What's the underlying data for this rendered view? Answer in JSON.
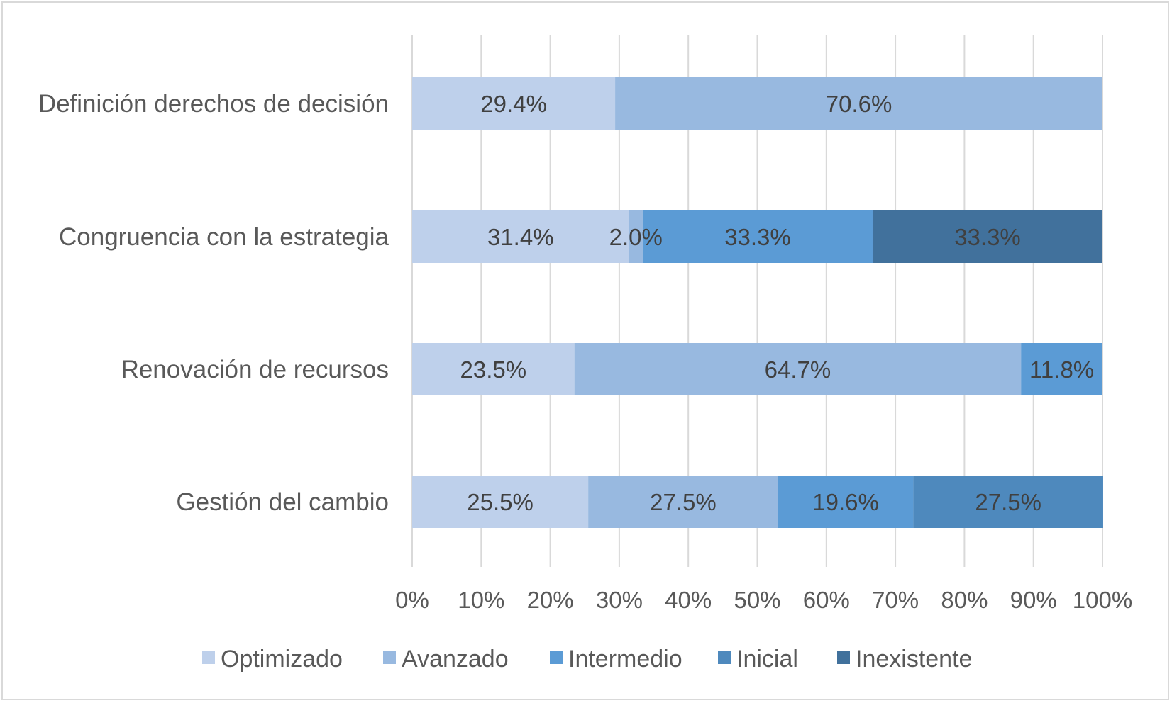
{
  "chart_data": {
    "type": "bar",
    "orientation": "horizontal",
    "stacked": "percent",
    "categories": [
      "Definición derechos de decisión",
      "Congruencia con la estrategia",
      "Renovación de recursos",
      "Gestión del cambio"
    ],
    "series": [
      {
        "name": "Optimizado",
        "color": "#bed0eb",
        "values": [
          29.4,
          31.4,
          23.5,
          25.5
        ],
        "labels": [
          "29.4%",
          "31.4%",
          "23.5%",
          "25.5%"
        ]
      },
      {
        "name": "Avanzado",
        "color": "#98b9e0",
        "values": [
          70.6,
          2.0,
          64.7,
          27.5
        ],
        "labels": [
          "70.6%",
          "2.0%",
          "64.7%",
          "27.5%"
        ]
      },
      {
        "name": "Intermedio",
        "color": "#5b9bd5",
        "values": [
          0,
          33.3,
          11.8,
          19.6
        ],
        "labels": [
          "",
          "33.3%",
          "11.8%",
          "19.6%"
        ]
      },
      {
        "name": "Inicial",
        "color": "#4e89bd",
        "values": [
          0,
          0,
          0,
          27.5
        ],
        "labels": [
          "",
          "",
          "",
          "27.5%"
        ]
      },
      {
        "name": "Inexistente",
        "color": "#41719c",
        "values": [
          0,
          33.3,
          0,
          0
        ],
        "labels": [
          "",
          "33.3%",
          "",
          ""
        ]
      }
    ],
    "xlim": [
      0,
      100
    ],
    "xticks": [
      "0%",
      "10%",
      "20%",
      "30%",
      "40%",
      "50%",
      "60%",
      "70%",
      "80%",
      "90%",
      "100%"
    ],
    "grid": true,
    "legend": "bottom",
    "title": "",
    "xlabel": "",
    "ylabel": ""
  }
}
